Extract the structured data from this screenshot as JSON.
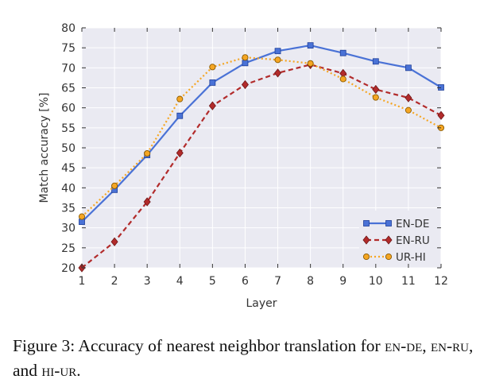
{
  "chart_data": {
    "type": "line",
    "xlabel": "Layer",
    "ylabel": "Match accuracy [%]",
    "x": [
      1,
      2,
      3,
      4,
      5,
      6,
      7,
      8,
      9,
      10,
      11,
      12
    ],
    "xlim": [
      1,
      12
    ],
    "ylim": [
      20,
      80
    ],
    "xticks": [
      "1",
      "2",
      "3",
      "4",
      "5",
      "6",
      "7",
      "8",
      "9",
      "10",
      "11",
      "12"
    ],
    "yticks": [
      "20",
      "25",
      "30",
      "35",
      "40",
      "45",
      "50",
      "55",
      "60",
      "65",
      "70",
      "75",
      "80"
    ],
    "grid": true,
    "legend_position": "lower-right",
    "series": [
      {
        "name": "EN-DE",
        "color": "#4a72d6",
        "style": "solid",
        "marker": "square",
        "values": [
          31.5,
          39.5,
          48.2,
          58.0,
          66.3,
          71.2,
          74.2,
          75.6,
          73.7,
          71.6,
          70.0,
          65.1
        ]
      },
      {
        "name": "EN-RU",
        "color": "#b22b2b",
        "style": "dashed",
        "marker": "diamond",
        "values": [
          20.0,
          26.5,
          36.5,
          48.7,
          60.5,
          65.8,
          68.7,
          70.8,
          68.6,
          64.6,
          62.5,
          58.1
        ]
      },
      {
        "name": "UR-HI",
        "color": "#f5a623",
        "style": "dotted",
        "marker": "circle",
        "values": [
          32.8,
          40.5,
          48.6,
          62.2,
          70.2,
          72.6,
          72.0,
          71.1,
          67.2,
          62.6,
          59.4,
          55.0
        ]
      }
    ]
  },
  "caption": {
    "prefix": "Figure 3: Accuracy of nearest neighbor translation for ",
    "term1": "en-de",
    "sep1": ", ",
    "term2": "en-ru",
    "sep2": ", and ",
    "term3": "hi-ur",
    "suffix": "."
  }
}
